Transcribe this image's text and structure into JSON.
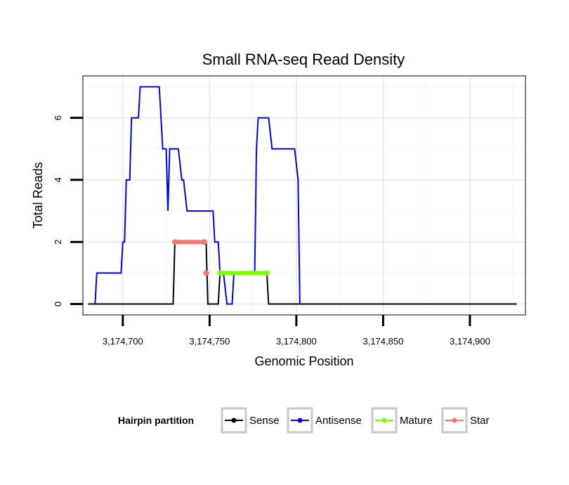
{
  "chart_data": {
    "type": "line",
    "title": "Small RNA-seq Read Density",
    "xlabel": "Genomic Position",
    "ylabel": "Total Reads",
    "xlim": [
      3174677,
      3174932
    ],
    "ylim": [
      -0.35,
      7.35
    ],
    "x_ticks": [
      3174700,
      3174750,
      3174800,
      3174850,
      3174900
    ],
    "x_tick_labels": [
      "3,174,700",
      "3,174,750",
      "3,174,800",
      "3,174,850",
      "3,174,900"
    ],
    "y_ticks": [
      0,
      2,
      4,
      6
    ],
    "y_tick_labels": [
      "0",
      "2",
      "4",
      "6"
    ],
    "grid": true,
    "legend": {
      "title": "Hairpin partition",
      "position": "bottom",
      "entries": [
        "Sense",
        "Antisense",
        "Mature",
        "Star"
      ]
    },
    "series": [
      {
        "name": "Sense",
        "color": "#000000",
        "style": "line",
        "points": [
          [
            3174680,
            0
          ],
          [
            3174729,
            0
          ],
          [
            3174730,
            2
          ],
          [
            3174748,
            2
          ],
          [
            3174749,
            0
          ],
          [
            3174755,
            0
          ],
          [
            3174756,
            1
          ],
          [
            3174783,
            1
          ],
          [
            3174784,
            0
          ],
          [
            3174927,
            0
          ]
        ]
      },
      {
        "name": "Antisense",
        "color": "#0000ff",
        "style": "line",
        "points": [
          [
            3174684,
            0
          ],
          [
            3174685,
            1
          ],
          [
            3174699,
            1
          ],
          [
            3174700,
            2
          ],
          [
            3174701,
            2
          ],
          [
            3174702,
            4
          ],
          [
            3174704,
            4
          ],
          [
            3174705,
            6
          ],
          [
            3174709,
            6
          ],
          [
            3174710,
            7
          ],
          [
            3174721,
            7
          ],
          [
            3174723,
            5
          ],
          [
            3174725,
            5
          ],
          [
            3174726,
            3
          ],
          [
            3174727,
            5
          ],
          [
            3174732,
            5
          ],
          [
            3174734,
            4
          ],
          [
            3174735,
            4
          ],
          [
            3174737,
            3
          ],
          [
            3174752,
            3
          ],
          [
            3174753,
            2
          ],
          [
            3174755,
            2
          ],
          [
            3174756,
            1
          ],
          [
            3174758,
            1
          ],
          [
            3174760,
            0
          ],
          [
            3174763,
            0
          ],
          [
            3174764,
            1
          ],
          [
            3174776,
            1
          ],
          [
            3174777,
            5
          ],
          [
            3174778,
            6
          ],
          [
            3174784,
            6
          ],
          [
            3174786,
            5
          ],
          [
            3174799,
            5
          ],
          [
            3174801,
            4
          ],
          [
            3174802,
            0
          ]
        ]
      },
      {
        "name": "Mature",
        "color": "#80ff00",
        "style": "thick",
        "points": [
          [
            3174756,
            1
          ],
          [
            3174783,
            1
          ]
        ]
      },
      {
        "name": "Star",
        "color": "#f8766d",
        "style": "thick",
        "points": [
          [
            3174730,
            2
          ],
          [
            3174747,
            2
          ]
        ],
        "extra_points": [
          [
            3174748,
            1
          ]
        ]
      }
    ]
  }
}
